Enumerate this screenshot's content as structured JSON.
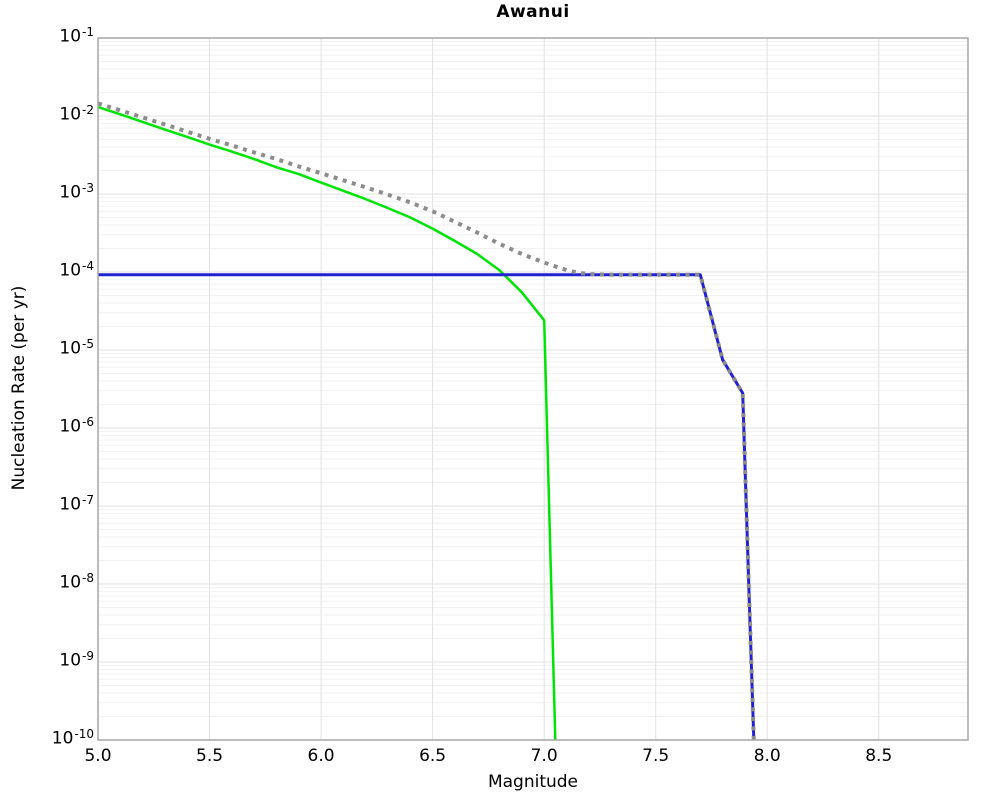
{
  "chart_data": {
    "type": "line",
    "title": "Awanui",
    "xlabel": "Magnitude",
    "ylabel": "Nucleation Rate (per yr)",
    "xlim": [
      5.0,
      8.9
    ],
    "ylim_log10": [
      -10,
      -1
    ],
    "x_ticks": [
      "5.0",
      "5.5",
      "6.0",
      "6.5",
      "7.0",
      "7.5",
      "8.0",
      "8.5"
    ],
    "y_tick_exponents": [
      -1,
      -2,
      -3,
      -4,
      -5,
      -6,
      -7,
      -8,
      -9,
      -10
    ],
    "grid": true,
    "legend": "none",
    "colors": {
      "grid_major": "#e2e2e2",
      "grid_minor": "#f2f2f2",
      "plot_border": "#a6a6a6",
      "text": "#000000"
    },
    "series": [
      {
        "name": "green_solid",
        "color": "#00e405",
        "style": "solid",
        "width": 2.5,
        "points": [
          [
            5.0,
            0.013
          ],
          [
            5.1,
            0.0105
          ],
          [
            5.2,
            0.0084
          ],
          [
            5.3,
            0.0067
          ],
          [
            5.4,
            0.0054
          ],
          [
            5.5,
            0.0043
          ],
          [
            5.6,
            0.0035
          ],
          [
            5.7,
            0.0028
          ],
          [
            5.8,
            0.0022
          ],
          [
            5.9,
            0.0018
          ],
          [
            6.0,
            0.0014
          ],
          [
            6.1,
            0.0011
          ],
          [
            6.2,
            0.00086
          ],
          [
            6.3,
            0.00066
          ],
          [
            6.4,
            0.0005
          ],
          [
            6.5,
            0.00036
          ],
          [
            6.6,
            0.00025
          ],
          [
            6.7,
            0.00017
          ],
          [
            6.8,
            0.000105
          ],
          [
            6.9,
            5.5e-05
          ],
          [
            7.0,
            2.4e-05
          ],
          [
            7.05,
            1e-10
          ]
        ]
      },
      {
        "name": "blue_solid",
        "color": "#2222d2",
        "style": "solid",
        "width": 3,
        "points": [
          [
            5.0,
            9.2e-05
          ],
          [
            7.7,
            9.2e-05
          ],
          [
            7.8,
            7.5e-06
          ],
          [
            7.89,
            2.8e-06
          ],
          [
            7.915,
            1.5e-08
          ],
          [
            7.94,
            1e-10
          ]
        ]
      },
      {
        "name": "gray_dotted_total",
        "color": "#8c8c8c",
        "style": "dotted",
        "width": 4,
        "points": [
          [
            5.0,
            0.0145
          ],
          [
            5.1,
            0.0118
          ],
          [
            5.2,
            0.0096
          ],
          [
            5.3,
            0.0078
          ],
          [
            5.4,
            0.0063
          ],
          [
            5.5,
            0.0051
          ],
          [
            5.6,
            0.0042
          ],
          [
            5.7,
            0.0034
          ],
          [
            5.8,
            0.0028
          ],
          [
            5.9,
            0.00225
          ],
          [
            6.0,
            0.00185
          ],
          [
            6.1,
            0.0015
          ],
          [
            6.2,
            0.00122
          ],
          [
            6.3,
            0.00098
          ],
          [
            6.4,
            0.00078
          ],
          [
            6.5,
            0.0006
          ],
          [
            6.6,
            0.00044
          ],
          [
            6.7,
            0.00032
          ],
          [
            6.8,
            0.00023
          ],
          [
            6.9,
            0.00017
          ],
          [
            7.0,
            0.000132
          ],
          [
            7.05,
            0.000118
          ],
          [
            7.1,
            0.000106
          ],
          [
            7.15,
            9.8e-05
          ],
          [
            7.2,
            9.4e-05
          ],
          [
            7.3,
            9.2e-05
          ],
          [
            7.7,
            9.2e-05
          ],
          [
            7.8,
            7.5e-06
          ],
          [
            7.89,
            2.8e-06
          ],
          [
            7.915,
            1.5e-08
          ],
          [
            7.94,
            1e-10
          ]
        ]
      }
    ]
  }
}
